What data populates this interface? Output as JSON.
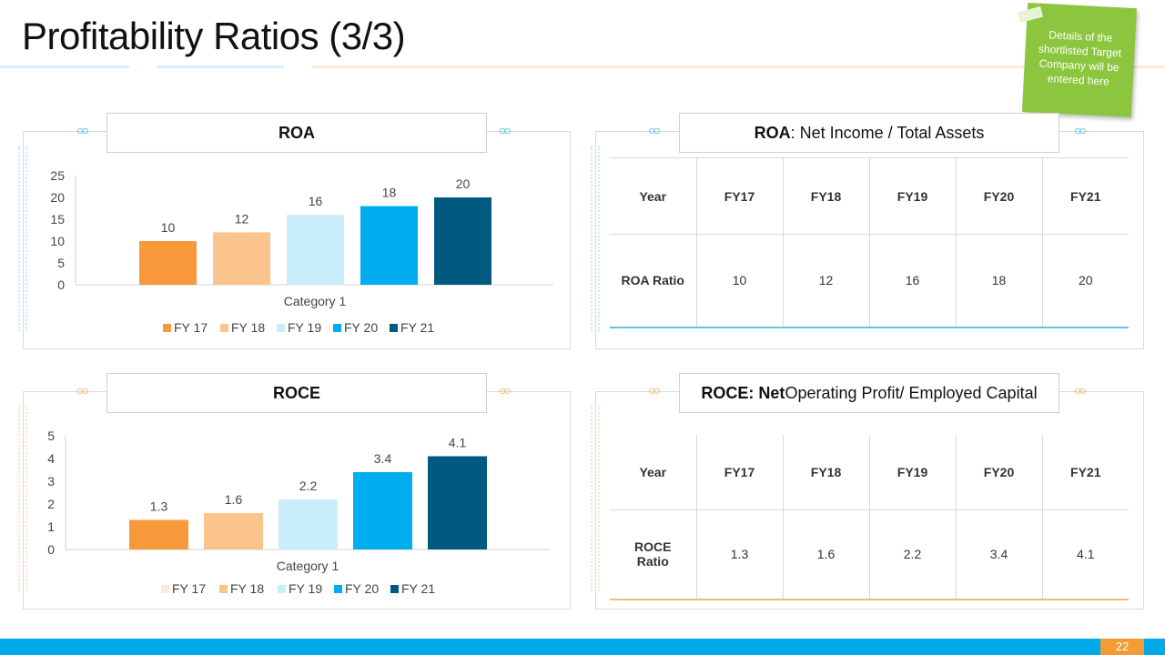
{
  "slide": {
    "title": "Profitability Ratios (3/3)",
    "note": "Details of the shortlisted Target Company will be entered here",
    "page_number": "22"
  },
  "roa_chart": {
    "header": "ROA"
  },
  "roce_chart": {
    "header": "ROCE"
  },
  "roa_table": {
    "header_bold": "ROA",
    "header_rest": ": Net Income / Total Assets",
    "columns": [
      "Year",
      "FY17",
      "FY18",
      "FY19",
      "FY20",
      "FY21"
    ],
    "row_label": "ROA Ratio",
    "values": [
      "10",
      "12",
      "16",
      "18",
      "20"
    ]
  },
  "roce_table": {
    "header_bold": "ROCE: Net",
    "header_rest": " Operating Profit/ Employed Capital",
    "columns": [
      "Year",
      "FY17",
      "FY18",
      "FY19",
      "FY20",
      "FY21"
    ],
    "row_label": "ROCE Ratio",
    "values": [
      "1.3",
      "1.6",
      "2.2",
      "3.4",
      "4.1"
    ]
  },
  "colors": {
    "fy17": "#f7993a",
    "fy18": "#fbc48c",
    "fy19": "#c9edfb",
    "fy20": "#00aeef",
    "fy21": "#005a80",
    "footer": "#00a9e8",
    "accent_orange": "#f39c33",
    "note": "#8cc63f"
  },
  "chart_data": [
    {
      "type": "bar",
      "categories": [
        "Category 1"
      ],
      "series": [
        {
          "name": "FY 17",
          "values": [
            10
          ]
        },
        {
          "name": "FY 18",
          "values": [
            12
          ]
        },
        {
          "name": "FY 19",
          "values": [
            16
          ]
        },
        {
          "name": "FY 20",
          "values": [
            18
          ]
        },
        {
          "name": "FY 21",
          "values": [
            20
          ]
        }
      ],
      "ylim": [
        0,
        25
      ],
      "yticks": [
        "0",
        "5",
        "10",
        "15",
        "20",
        "25"
      ],
      "data_labels": [
        "10",
        "12",
        "16",
        "18",
        "20"
      ],
      "xlabel": "Category 1",
      "legend": "bottom",
      "grid": false
    },
    {
      "type": "bar",
      "categories": [
        "Category 1"
      ],
      "series": [
        {
          "name": "FY 17",
          "values": [
            1.3
          ]
        },
        {
          "name": "FY 18",
          "values": [
            1.6
          ]
        },
        {
          "name": "FY 19",
          "values": [
            2.2
          ]
        },
        {
          "name": "FY 20",
          "values": [
            3.4
          ]
        },
        {
          "name": "FY 21",
          "values": [
            4.1
          ]
        }
      ],
      "ylim": [
        0,
        5
      ],
      "yticks": [
        "0",
        "1",
        "2",
        "3",
        "4",
        "5"
      ],
      "data_labels": [
        "1.3",
        "1.6",
        "2.2",
        "3.4",
        "4.1"
      ],
      "legend_swatch_fy17": "#fbe9dc",
      "xlabel": "Category 1",
      "legend": "bottom",
      "grid": false
    }
  ]
}
